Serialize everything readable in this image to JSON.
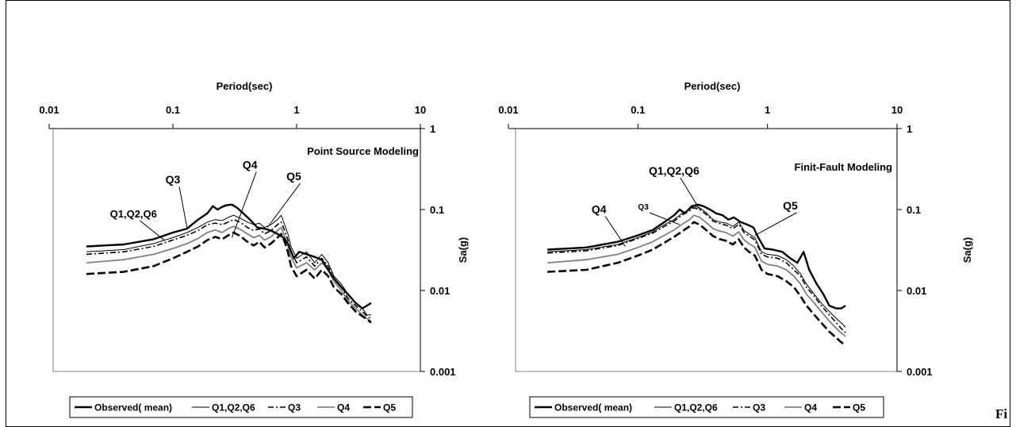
{
  "styles": {
    "Observed( mean)": {
      "color": "#000000",
      "dash": "none",
      "width": 2.4
    },
    "Q1,Q2,Q6": {
      "color": "#000000",
      "dash": "none",
      "width": 1
    },
    "Q3": {
      "color": "#000000",
      "dash": "7,3,2,3",
      "width": 1.6
    },
    "Q4": {
      "color": "#808080",
      "dash": "none",
      "width": 1.8
    },
    "Q5": {
      "color": "#000000",
      "dash": "10,4",
      "width": 2.6
    }
  },
  "chart_data": [
    {
      "type": "line",
      "title": "Point Source Modeling",
      "xlabel": "Period(sec)",
      "ylabel": "Sa(g)",
      "x_scale": "log",
      "y_scale": "log",
      "xlim": [
        0.01,
        10
      ],
      "ylim": [
        0.001,
        1
      ],
      "x_ticks": [
        "0.01",
        "0.1",
        "1",
        "10"
      ],
      "y_ticks": [
        "0.001",
        "0.01",
        "0.1",
        "1"
      ],
      "x_axis_position": "top",
      "y_axis_position": "right",
      "legend": [
        "Observed( mean)",
        "Q1,Q2,Q6",
        "Q3",
        "Q4",
        "Q5"
      ],
      "legend_position": "bottom",
      "grid": false,
      "series": [
        {
          "name": "Observed( mean)",
          "x": [
            0.02,
            0.04,
            0.07,
            0.1,
            0.13,
            0.16,
            0.19,
            0.21,
            0.23,
            0.25,
            0.27,
            0.3,
            0.33,
            0.37,
            0.42,
            0.48,
            0.55,
            0.62,
            0.7,
            0.78,
            0.85,
            0.95,
            1.05,
            1.2,
            1.4,
            1.6,
            1.8,
            2.0,
            2.3,
            2.6,
            3.0,
            3.4,
            3.7,
            4.0
          ],
          "y": [
            0.035,
            0.037,
            0.043,
            0.052,
            0.058,
            0.075,
            0.09,
            0.11,
            0.1,
            0.108,
            0.113,
            0.115,
            0.105,
            0.09,
            0.075,
            0.06,
            0.058,
            0.055,
            0.05,
            0.045,
            0.038,
            0.025,
            0.03,
            0.028,
            0.026,
            0.024,
            0.018,
            0.014,
            0.011,
            0.009,
            0.007,
            0.006,
            0.0065,
            0.007
          ]
        },
        {
          "name": "Q1,Q2,Q6",
          "x": [
            0.02,
            0.04,
            0.07,
            0.1,
            0.13,
            0.16,
            0.19,
            0.22,
            0.25,
            0.28,
            0.31,
            0.35,
            0.4,
            0.45,
            0.5,
            0.55,
            0.62,
            0.7,
            0.75,
            0.8,
            0.85,
            0.9,
            1.0,
            1.2,
            1.4,
            1.6,
            1.8,
            2.0,
            2.3,
            2.6,
            3.0,
            3.4,
            3.7,
            4.0
          ],
          "y": [
            0.03,
            0.032,
            0.038,
            0.045,
            0.052,
            0.06,
            0.07,
            0.075,
            0.073,
            0.08,
            0.085,
            0.078,
            0.07,
            0.065,
            0.068,
            0.06,
            0.065,
            0.075,
            0.085,
            0.065,
            0.05,
            0.035,
            0.025,
            0.03,
            0.022,
            0.028,
            0.022,
            0.015,
            0.012,
            0.009,
            0.007,
            0.006,
            0.005,
            0.005
          ]
        },
        {
          "name": "Q3",
          "x": [
            0.02,
            0.04,
            0.07,
            0.1,
            0.13,
            0.16,
            0.19,
            0.22,
            0.25,
            0.28,
            0.31,
            0.35,
            0.4,
            0.45,
            0.5,
            0.55,
            0.62,
            0.7,
            0.75,
            0.8,
            0.85,
            0.9,
            1.0,
            1.2,
            1.4,
            1.6,
            1.8,
            2.0,
            2.3,
            2.6,
            3.0,
            3.4,
            3.7,
            4.0
          ],
          "y": [
            0.028,
            0.03,
            0.035,
            0.042,
            0.048,
            0.055,
            0.065,
            0.068,
            0.065,
            0.07,
            0.075,
            0.07,
            0.06,
            0.055,
            0.058,
            0.05,
            0.055,
            0.065,
            0.07,
            0.055,
            0.042,
            0.03,
            0.022,
            0.026,
            0.02,
            0.025,
            0.02,
            0.014,
            0.011,
            0.008,
            0.0065,
            0.0055,
            0.0048,
            0.0045
          ]
        },
        {
          "name": "Q4",
          "x": [
            0.02,
            0.04,
            0.07,
            0.1,
            0.13,
            0.16,
            0.19,
            0.22,
            0.25,
            0.28,
            0.31,
            0.35,
            0.4,
            0.45,
            0.5,
            0.55,
            0.62,
            0.7,
            0.75,
            0.8,
            0.85,
            0.9,
            1.0,
            1.2,
            1.4,
            1.6,
            1.8,
            2.0,
            2.3,
            2.6,
            3.0,
            3.4,
            3.7,
            4.0
          ],
          "y": [
            0.022,
            0.024,
            0.028,
            0.033,
            0.038,
            0.044,
            0.052,
            0.056,
            0.052,
            0.058,
            0.062,
            0.057,
            0.05,
            0.045,
            0.048,
            0.042,
            0.046,
            0.055,
            0.06,
            0.047,
            0.036,
            0.026,
            0.019,
            0.022,
            0.018,
            0.022,
            0.018,
            0.013,
            0.01,
            0.0075,
            0.006,
            0.005,
            0.0045,
            0.0042
          ]
        },
        {
          "name": "Q5",
          "x": [
            0.02,
            0.04,
            0.07,
            0.1,
            0.13,
            0.16,
            0.19,
            0.22,
            0.25,
            0.28,
            0.31,
            0.35,
            0.4,
            0.45,
            0.5,
            0.55,
            0.62,
            0.7,
            0.75,
            0.8,
            0.85,
            0.9,
            1.0,
            1.2,
            1.4,
            1.6,
            1.8,
            2.0,
            2.3,
            2.6,
            3.0,
            3.4,
            3.7,
            4.0
          ],
          "y": [
            0.016,
            0.017,
            0.02,
            0.025,
            0.03,
            0.035,
            0.042,
            0.046,
            0.043,
            0.048,
            0.052,
            0.047,
            0.04,
            0.036,
            0.04,
            0.034,
            0.038,
            0.045,
            0.05,
            0.04,
            0.03,
            0.02,
            0.015,
            0.018,
            0.014,
            0.018,
            0.015,
            0.011,
            0.009,
            0.007,
            0.0055,
            0.0048,
            0.0044,
            0.004
          ]
        }
      ],
      "annotations": [
        {
          "text": "Q3",
          "x": 0.1,
          "y": 0.21,
          "to_x": 0.13,
          "to_y": 0.06
        },
        {
          "text": "Q4",
          "x": 0.42,
          "y": 0.32,
          "to_x": 0.3,
          "to_y": 0.045
        },
        {
          "text": "Q5",
          "x": 0.95,
          "y": 0.23,
          "to_x": 0.58,
          "to_y": 0.06
        },
        {
          "text": "Q1,Q2,Q6",
          "x": 0.048,
          "y": 0.08,
          "to_x": 0.085,
          "to_y": 0.042
        }
      ]
    },
    {
      "type": "line",
      "title": "Finit-Fault Modeling",
      "xlabel": "Period(sec)",
      "ylabel": "Sa(g)",
      "x_scale": "log",
      "y_scale": "log",
      "xlim": [
        0.01,
        10
      ],
      "ylim": [
        0.001,
        1
      ],
      "x_ticks": [
        "0.01",
        "0.1",
        "1",
        "10"
      ],
      "y_ticks": [
        "0.001",
        "0.01",
        "0.1",
        "1"
      ],
      "x_axis_position": "top",
      "y_axis_position": "right",
      "legend": [
        "Observed( mean)",
        "Q1,Q2,Q6",
        "Q3",
        "Q4",
        "Q5"
      ],
      "legend_position": "bottom",
      "grid": false,
      "series": [
        {
          "name": "Observed( mean)",
          "x": [
            0.02,
            0.04,
            0.07,
            0.1,
            0.13,
            0.16,
            0.19,
            0.21,
            0.23,
            0.26,
            0.29,
            0.32,
            0.36,
            0.4,
            0.45,
            0.5,
            0.55,
            0.62,
            0.7,
            0.78,
            0.85,
            0.95,
            1.1,
            1.3,
            1.5,
            1.7,
            1.9,
            2.1,
            2.4,
            2.7,
            3.0,
            3.4,
            3.7,
            4.0
          ],
          "y": [
            0.032,
            0.034,
            0.04,
            0.048,
            0.056,
            0.07,
            0.085,
            0.1,
            0.09,
            0.11,
            0.115,
            0.11,
            0.1,
            0.09,
            0.085,
            0.075,
            0.08,
            0.07,
            0.065,
            0.06,
            0.045,
            0.033,
            0.032,
            0.03,
            0.025,
            0.022,
            0.03,
            0.018,
            0.012,
            0.009,
            0.0065,
            0.006,
            0.006,
            0.0065
          ]
        },
        {
          "name": "Q1,Q2,Q6",
          "x": [
            0.02,
            0.04,
            0.07,
            0.1,
            0.13,
            0.16,
            0.19,
            0.22,
            0.25,
            0.27,
            0.3,
            0.34,
            0.38,
            0.43,
            0.48,
            0.54,
            0.6,
            0.66,
            0.72,
            0.8,
            0.9,
            1.0,
            1.2,
            1.4,
            1.6,
            1.8,
            2.0,
            2.3,
            2.6,
            3.0,
            3.4,
            3.7,
            4.0
          ],
          "y": [
            0.03,
            0.032,
            0.037,
            0.045,
            0.053,
            0.065,
            0.075,
            0.09,
            0.1,
            0.11,
            0.105,
            0.09,
            0.075,
            0.07,
            0.068,
            0.062,
            0.07,
            0.055,
            0.05,
            0.045,
            0.03,
            0.028,
            0.027,
            0.024,
            0.02,
            0.016,
            0.012,
            0.009,
            0.007,
            0.0055,
            0.0045,
            0.004,
            0.0035
          ]
        },
        {
          "name": "Q3",
          "x": [
            0.02,
            0.04,
            0.07,
            0.1,
            0.13,
            0.16,
            0.19,
            0.22,
            0.25,
            0.27,
            0.3,
            0.34,
            0.38,
            0.43,
            0.48,
            0.54,
            0.6,
            0.66,
            0.72,
            0.8,
            0.9,
            1.0,
            1.2,
            1.4,
            1.6,
            1.8,
            2.0,
            2.3,
            2.6,
            3.0,
            3.4,
            3.7,
            4.0
          ],
          "y": [
            0.029,
            0.031,
            0.036,
            0.044,
            0.051,
            0.062,
            0.072,
            0.086,
            0.096,
            0.105,
            0.1,
            0.086,
            0.072,
            0.067,
            0.064,
            0.058,
            0.066,
            0.052,
            0.047,
            0.042,
            0.028,
            0.026,
            0.025,
            0.022,
            0.018,
            0.015,
            0.011,
            0.0085,
            0.0065,
            0.005,
            0.004,
            0.0034,
            0.003
          ]
        },
        {
          "name": "Q4",
          "x": [
            0.02,
            0.04,
            0.07,
            0.1,
            0.13,
            0.16,
            0.19,
            0.22,
            0.25,
            0.27,
            0.3,
            0.34,
            0.38,
            0.43,
            0.48,
            0.54,
            0.6,
            0.66,
            0.72,
            0.8,
            0.9,
            1.0,
            1.2,
            1.4,
            1.6,
            1.8,
            2.0,
            2.3,
            2.6,
            3.0,
            3.4,
            3.7,
            4.0
          ],
          "y": [
            0.022,
            0.024,
            0.028,
            0.034,
            0.04,
            0.048,
            0.056,
            0.066,
            0.075,
            0.085,
            0.08,
            0.068,
            0.058,
            0.054,
            0.052,
            0.047,
            0.053,
            0.042,
            0.038,
            0.034,
            0.023,
            0.021,
            0.02,
            0.018,
            0.015,
            0.012,
            0.009,
            0.007,
            0.0055,
            0.0042,
            0.0034,
            0.003,
            0.0027
          ]
        },
        {
          "name": "Q5",
          "x": [
            0.02,
            0.04,
            0.07,
            0.1,
            0.13,
            0.16,
            0.19,
            0.22,
            0.25,
            0.27,
            0.3,
            0.34,
            0.38,
            0.43,
            0.48,
            0.54,
            0.6,
            0.66,
            0.72,
            0.8,
            0.9,
            1.0,
            1.2,
            1.4,
            1.6,
            1.8,
            2.0,
            2.3,
            2.6,
            3.0,
            3.4,
            3.7,
            4.0
          ],
          "y": [
            0.017,
            0.018,
            0.022,
            0.027,
            0.032,
            0.039,
            0.046,
            0.054,
            0.062,
            0.07,
            0.065,
            0.055,
            0.047,
            0.043,
            0.041,
            0.037,
            0.043,
            0.034,
            0.03,
            0.027,
            0.018,
            0.016,
            0.015,
            0.013,
            0.011,
            0.0085,
            0.0065,
            0.005,
            0.004,
            0.0031,
            0.0026,
            0.0023,
            0.0021
          ]
        }
      ],
      "annotations": [
        {
          "text": "Q1,Q2,Q6",
          "x": 0.19,
          "y": 0.27,
          "to_x": 0.3,
          "to_y": 0.1
        },
        {
          "text": "Q3",
          "x": 0.11,
          "y": 0.1,
          "to_x": 0.21,
          "to_y": 0.065
        },
        {
          "text": "Q4",
          "x": 0.05,
          "y": 0.09,
          "to_x": 0.08,
          "to_y": 0.035
        },
        {
          "text": "Q5",
          "x": 1.5,
          "y": 0.1,
          "to_x": 0.8,
          "to_y": 0.048
        }
      ]
    }
  ],
  "caption_fragment": "Fi"
}
